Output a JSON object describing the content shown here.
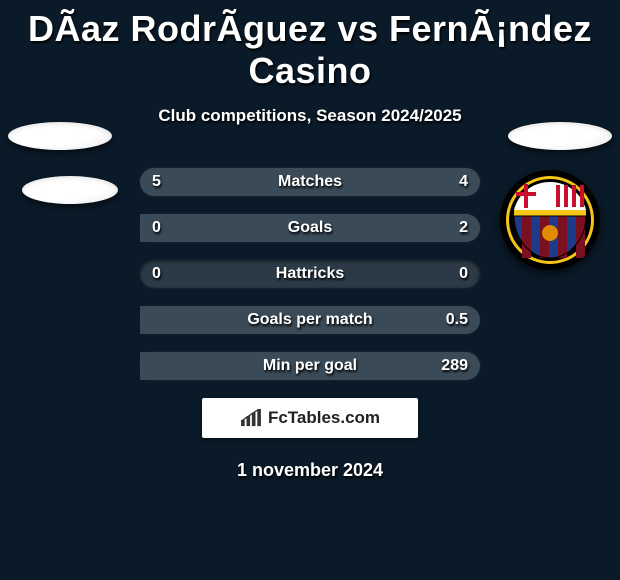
{
  "title": "DÃ­az RodrÃ­guez vs FernÃ¡ndez Casino",
  "subtitle": "Club competitions, Season 2024/2025",
  "date": "1 november 2024",
  "logo_text": "FcTables.com",
  "colors": {
    "bg": "#0a1a28",
    "bar_bg": "#2b3a46",
    "bar_fill": "#3a4a57",
    "text": "#ffffff"
  },
  "rows": [
    {
      "label": "Matches",
      "left": "5",
      "right": "4",
      "left_pct": 56,
      "right_pct": 44
    },
    {
      "label": "Goals",
      "left": "0",
      "right": "2",
      "left_pct": 0,
      "right_pct": 100
    },
    {
      "label": "Hattricks",
      "left": "0",
      "right": "0",
      "left_pct": 0,
      "right_pct": 0
    },
    {
      "label": "Goals per match",
      "left": "",
      "right": "0.5",
      "left_pct": 0,
      "right_pct": 100
    },
    {
      "label": "Min per goal",
      "left": "",
      "right": "289",
      "left_pct": 0,
      "right_pct": 100
    }
  ],
  "crest": {
    "outer_ring": "#f5c518",
    "inner_ring": "#000000",
    "stripe_blue": "#1e3a8a",
    "stripe_garnet": "#7a1020",
    "top_bg": "#ffffff",
    "cross_red": "#c8102e",
    "ball": "#e38b00"
  }
}
